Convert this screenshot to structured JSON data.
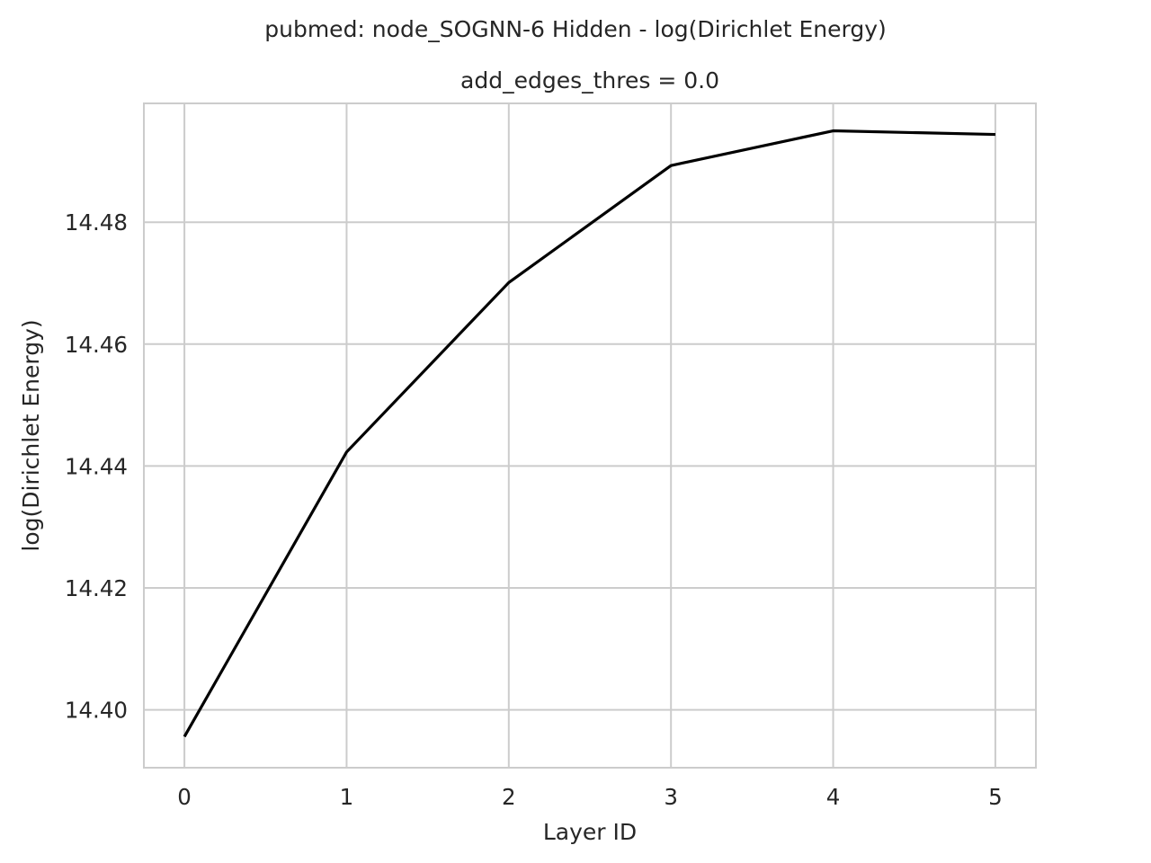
{
  "chart_data": {
    "type": "line",
    "suptitle": "pubmed: node_SOGNN-6 Hidden - log(Dirichlet Energy)",
    "title": "add_edges_thres = 0.0",
    "xlabel": "Layer ID",
    "ylabel": "log(Dirichlet Energy)",
    "x": [
      0,
      1,
      2,
      3,
      4,
      5
    ],
    "series": [
      {
        "values": [
          14.3956,
          14.4423,
          14.4701,
          14.4893,
          14.495,
          14.4944
        ],
        "color": "#000000"
      }
    ],
    "xlim": [
      -0.25,
      5.25
    ],
    "ylim": [
      14.3905,
      14.4995
    ],
    "xticks": [
      "0",
      "1",
      "2",
      "3",
      "4",
      "5"
    ],
    "yticks": [
      "14.40",
      "14.42",
      "14.44",
      "14.46",
      "14.48"
    ],
    "grid": true,
    "legend": "none"
  }
}
